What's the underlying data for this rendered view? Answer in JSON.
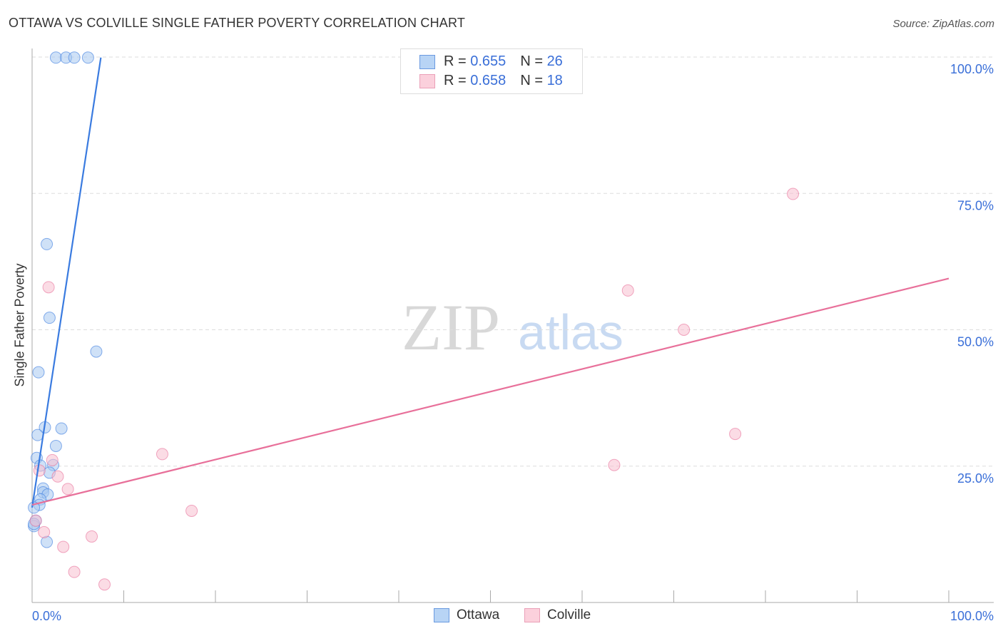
{
  "chart_data": {
    "type": "scatter",
    "title": "OTTAWA VS COLVILLE SINGLE FATHER POVERTY CORRELATION CHART",
    "source": "Source: ZipAtlas.com",
    "xlabel": "",
    "ylabel": "Single Father Poverty",
    "xlim": [
      0,
      100
    ],
    "ylim": [
      0,
      100
    ],
    "x_tick_labels": [
      "0.0%",
      "100.0%"
    ],
    "y_tick_labels": [
      {
        "v": 100,
        "label": "100.0%"
      },
      {
        "v": 75,
        "label": "75.0%"
      },
      {
        "v": 50,
        "label": "50.0%"
      },
      {
        "v": 25,
        "label": "25.0%"
      }
    ],
    "grid": true,
    "watermark": "ZIPatlas",
    "legend_placement": "top-center",
    "series": [
      {
        "name": "Ottawa",
        "color": "#3a7be0",
        "fill": "#a8c8f0",
        "r": "0.655",
        "n": "26",
        "trend": [
          [
            0,
            17.4
          ],
          [
            7.5,
            99.9
          ]
        ],
        "points": [
          [
            2.6,
            99.9
          ],
          [
            3.7,
            99.9
          ],
          [
            4.6,
            99.9
          ],
          [
            6.1,
            99.9
          ],
          [
            1.6,
            65.7
          ],
          [
            1.9,
            52.2
          ],
          [
            7.0,
            46.0
          ],
          [
            0.7,
            42.2
          ],
          [
            1.4,
            32.1
          ],
          [
            3.2,
            31.9
          ],
          [
            0.6,
            30.7
          ],
          [
            2.6,
            28.7
          ],
          [
            0.5,
            26.5
          ],
          [
            0.9,
            25.1
          ],
          [
            2.3,
            25.2
          ],
          [
            1.9,
            23.8
          ],
          [
            1.2,
            20.9
          ],
          [
            1.2,
            20.2
          ],
          [
            1.7,
            19.8
          ],
          [
            0.9,
            18.9
          ],
          [
            0.8,
            17.9
          ],
          [
            0.2,
            17.4
          ],
          [
            0.4,
            15.0
          ],
          [
            0.2,
            14.0
          ],
          [
            1.6,
            11.1
          ],
          [
            0.2,
            14.4
          ]
        ]
      },
      {
        "name": "Colville",
        "color": "#e8709a",
        "fill": "#f8c0d0",
        "r": "0.658",
        "n": "18",
        "trend": [
          [
            0,
            17.9
          ],
          [
            100,
            59.4
          ]
        ],
        "points": [
          [
            83.0,
            74.9
          ],
          [
            65.0,
            57.2
          ],
          [
            71.1,
            50.0
          ],
          [
            76.7,
            30.9
          ],
          [
            63.5,
            25.2
          ],
          [
            1.8,
            57.8
          ],
          [
            14.2,
            27.2
          ],
          [
            2.2,
            26.1
          ],
          [
            2.8,
            23.1
          ],
          [
            3.9,
            20.8
          ],
          [
            17.4,
            16.8
          ],
          [
            6.5,
            12.1
          ],
          [
            1.3,
            12.9
          ],
          [
            3.4,
            10.2
          ],
          [
            4.6,
            5.6
          ],
          [
            7.9,
            3.3
          ],
          [
            0.4,
            15.0
          ],
          [
            0.8,
            24.2
          ]
        ]
      }
    ]
  },
  "legend": {
    "r_label": "R =",
    "n_label": "N ="
  }
}
